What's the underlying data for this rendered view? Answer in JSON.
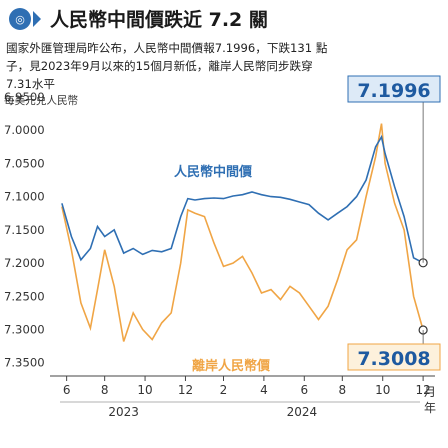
{
  "header": {
    "title": "人民幣中間價跌近 7.2 關",
    "subtitle_lines": [
      "國家外匯管理局昨公布，人民幣中間價報7.1996，下跌131 點",
      "子，見2023年9月以來的15個月新低，離岸人民幣同步跌穿",
      "7.31水平"
    ]
  },
  "colors": {
    "onshore": "#2f6fb3",
    "offshore": "#f0a545",
    "callout_onshore_fill": "#ddeaf7",
    "callout_offshore_fill": "#fdf1dc",
    "accent_text": "#1e5aa0"
  },
  "chart_data": {
    "type": "line",
    "unit_label": "每美元兑人民幣",
    "y_reversed": true,
    "ylim": [
      6.95,
      7.37
    ],
    "yticks": [
      "6.9500",
      "7.0000",
      "7.0500",
      "7.1000",
      "7.1500",
      "7.2000",
      "7.2500",
      "7.3000",
      "7.3500"
    ],
    "xticks": [
      {
        "label": "6",
        "x": 2023.42
      },
      {
        "label": "8",
        "x": 2023.58
      },
      {
        "label": "10",
        "x": 2023.75
      },
      {
        "label": "12",
        "x": 2023.92
      },
      {
        "label": "2",
        "x": 2024.08
      },
      {
        "label": "4",
        "x": 2024.25
      },
      {
        "label": "6",
        "x": 2024.42
      },
      {
        "label": "8",
        "x": 2024.58
      },
      {
        "label": "10",
        "x": 2024.75
      },
      {
        "label": "12",
        "x": 2024.92
      }
    ],
    "x_unit_label": "月",
    "x_unit_label2": "年",
    "years": [
      {
        "label": "2023",
        "x": 2023.66
      },
      {
        "label": "2024",
        "x": 2024.41
      }
    ],
    "xlim": [
      2023.35,
      2024.97
    ],
    "series": [
      {
        "name": "人民幣中間價",
        "points": [
          [
            2023.4,
            7.11
          ],
          [
            2023.44,
            7.16
          ],
          [
            2023.48,
            7.195
          ],
          [
            2023.52,
            7.178
          ],
          [
            2023.55,
            7.145
          ],
          [
            2023.58,
            7.16
          ],
          [
            2023.62,
            7.15
          ],
          [
            2023.66,
            7.185
          ],
          [
            2023.7,
            7.178
          ],
          [
            2023.74,
            7.187
          ],
          [
            2023.78,
            7.181
          ],
          [
            2023.82,
            7.183
          ],
          [
            2023.86,
            7.178
          ],
          [
            2023.9,
            7.13
          ],
          [
            2023.93,
            7.103
          ],
          [
            2023.96,
            7.105
          ],
          [
            2024.0,
            7.103
          ],
          [
            2024.04,
            7.102
          ],
          [
            2024.08,
            7.103
          ],
          [
            2024.12,
            7.099
          ],
          [
            2024.16,
            7.097
          ],
          [
            2024.2,
            7.093
          ],
          [
            2024.24,
            7.097
          ],
          [
            2024.28,
            7.1
          ],
          [
            2024.32,
            7.101
          ],
          [
            2024.36,
            7.104
          ],
          [
            2024.4,
            7.108
          ],
          [
            2024.44,
            7.112
          ],
          [
            2024.48,
            7.125
          ],
          [
            2024.52,
            7.135
          ],
          [
            2024.56,
            7.125
          ],
          [
            2024.6,
            7.115
          ],
          [
            2024.64,
            7.1
          ],
          [
            2024.68,
            7.075
          ],
          [
            2024.72,
            7.025
          ],
          [
            2024.745,
            7.01
          ],
          [
            2024.76,
            7.035
          ],
          [
            2024.8,
            7.085
          ],
          [
            2024.84,
            7.13
          ],
          [
            2024.88,
            7.192
          ],
          [
            2024.92,
            7.1996
          ]
        ]
      },
      {
        "name": "離岸人民幣價",
        "points": [
          [
            2023.4,
            7.115
          ],
          [
            2023.44,
            7.18
          ],
          [
            2023.48,
            7.26
          ],
          [
            2023.52,
            7.298
          ],
          [
            2023.55,
            7.24
          ],
          [
            2023.58,
            7.18
          ],
          [
            2023.62,
            7.235
          ],
          [
            2023.66,
            7.318
          ],
          [
            2023.7,
            7.275
          ],
          [
            2023.74,
            7.3
          ],
          [
            2023.78,
            7.315
          ],
          [
            2023.82,
            7.29
          ],
          [
            2023.86,
            7.275
          ],
          [
            2023.9,
            7.2
          ],
          [
            2023.93,
            7.12
          ],
          [
            2023.96,
            7.125
          ],
          [
            2024.0,
            7.13
          ],
          [
            2024.04,
            7.17
          ],
          [
            2024.08,
            7.205
          ],
          [
            2024.12,
            7.2
          ],
          [
            2024.16,
            7.19
          ],
          [
            2024.2,
            7.215
          ],
          [
            2024.24,
            7.245
          ],
          [
            2024.28,
            7.24
          ],
          [
            2024.32,
            7.255
          ],
          [
            2024.36,
            7.235
          ],
          [
            2024.4,
            7.245
          ],
          [
            2024.44,
            7.265
          ],
          [
            2024.48,
            7.285
          ],
          [
            2024.52,
            7.265
          ],
          [
            2024.56,
            7.225
          ],
          [
            2024.6,
            7.18
          ],
          [
            2024.64,
            7.165
          ],
          [
            2024.68,
            7.1
          ],
          [
            2024.72,
            7.04
          ],
          [
            2024.745,
            6.99
          ],
          [
            2024.76,
            7.05
          ],
          [
            2024.8,
            7.11
          ],
          [
            2024.84,
            7.15
          ],
          [
            2024.88,
            7.25
          ],
          [
            2024.92,
            7.3008
          ]
        ]
      }
    ],
    "annotations": {
      "onshore_latest": "7.1996",
      "offshore_latest": "7.3008"
    }
  }
}
